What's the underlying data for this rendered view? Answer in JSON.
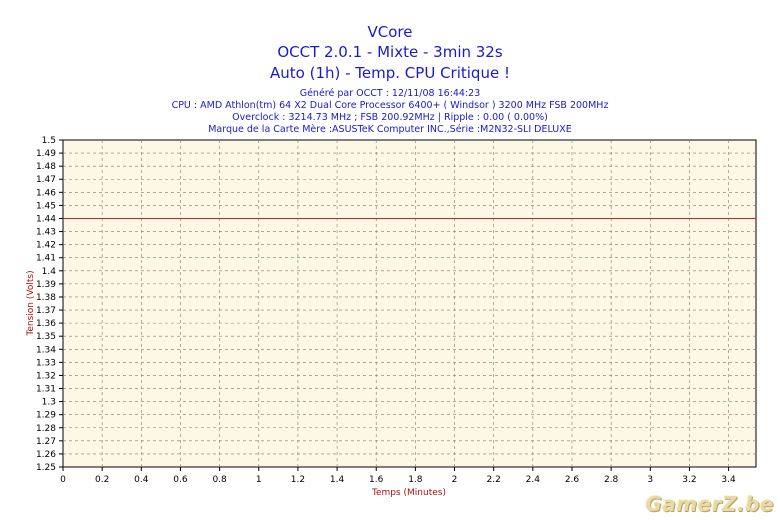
{
  "header": {
    "title": "VCore",
    "line2": "OCCT 2.0.1 - Mixte - 3min 32s",
    "line3": "Auto (1h) - Temp. CPU Critique !",
    "info1": "Généré par OCCT : 12/11/08 16:44:23",
    "info2": "CPU : AMD Athlon(tm) 64 X2 Dual Core Processor 6400+ ( Windsor ) 3200 MHz FSB 200MHz",
    "info3": "Overclock : 3214.73 MHz ; FSB 200.92MHz | Ripple : 0.00 ( 0.00%)",
    "info4": "Marque de la Carte Mère :ASUSTeK Computer INC.,Série :M2N32-SLI DELUXE"
  },
  "watermark": "GamerZ.be",
  "chart_data": {
    "type": "line",
    "xlabel": "Temps (Minutes)",
    "ylabel": "Tension (Volts)",
    "xlim": [
      0,
      3.54
    ],
    "ylim": [
      1.25,
      1.5
    ],
    "x_ticks": [
      0,
      0.2,
      0.4,
      0.6,
      0.8,
      1,
      1.2,
      1.4,
      1.6,
      1.8,
      2,
      2.2,
      2.4,
      2.6,
      2.8,
      3,
      3.2,
      3.4
    ],
    "x_tick_labels": [
      "0",
      "0.2",
      "0.4",
      "0.6",
      "0.8",
      "1",
      "1.2",
      "1.4",
      "1.6",
      "1.8",
      "2",
      "2.2",
      "2.4",
      "2.6",
      "2.8",
      "3",
      "3.2",
      "3.4"
    ],
    "y_ticks": [
      1.25,
      1.26,
      1.27,
      1.28,
      1.29,
      1.3,
      1.31,
      1.32,
      1.33,
      1.34,
      1.35,
      1.36,
      1.37,
      1.38,
      1.39,
      1.4,
      1.41,
      1.42,
      1.43,
      1.44,
      1.45,
      1.46,
      1.47,
      1.48,
      1.49,
      1.5
    ],
    "y_tick_labels": [
      "1.25",
      "1.26",
      "1.27",
      "1.28",
      "1.29",
      "1.3",
      "1.31",
      "1.32",
      "1.33",
      "1.34",
      "1.35",
      "1.36",
      "1.37",
      "1.38",
      "1.39",
      "1.4",
      "1.41",
      "1.42",
      "1.43",
      "1.44",
      "1.45",
      "1.46",
      "1.47",
      "1.48",
      "1.49",
      "1.5"
    ],
    "grid": true,
    "series": [
      {
        "x": [
          0,
          3.54
        ],
        "values": [
          1.44,
          1.44
        ]
      }
    ],
    "colors": {
      "line": "#cc2020",
      "plot_bg": "#fdf8e6",
      "grid": "#7a7a7a",
      "title": "#1a1acc",
      "axis_label": "#b01010"
    }
  }
}
